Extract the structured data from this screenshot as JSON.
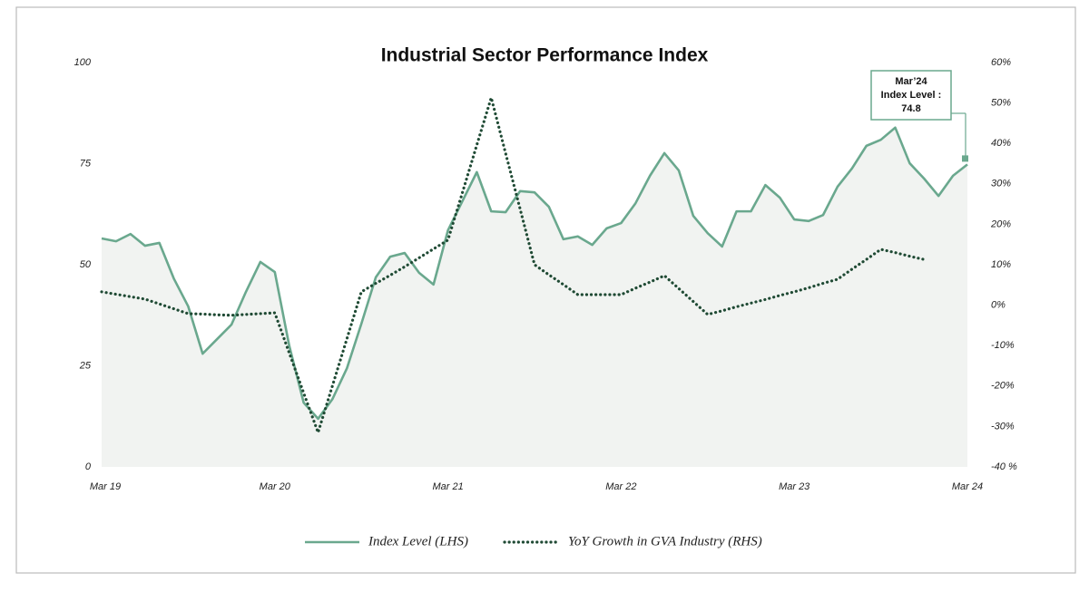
{
  "chart_data": {
    "type": "line",
    "title": "Industrial Sector Performance Index",
    "categories": [
      "Mar 19",
      null,
      null,
      null,
      null,
      null,
      null,
      null,
      null,
      null,
      null,
      null,
      "Mar 20",
      null,
      null,
      null,
      null,
      null,
      null,
      null,
      null,
      null,
      null,
      null,
      "Mar 21",
      null,
      null,
      null,
      null,
      null,
      null,
      null,
      null,
      null,
      null,
      null,
      "Mar 22",
      null,
      null,
      null,
      null,
      null,
      null,
      null,
      null,
      null,
      null,
      null,
      "Mar 23",
      null,
      null,
      null,
      null,
      null,
      null,
      null,
      null,
      null,
      null,
      null,
      "Mar 24"
    ],
    "series": [
      {
        "name": "Index Level (LHS)",
        "color": "#6aa88e",
        "area": true,
        "axis": "y",
        "values": [
          56.5,
          55.8,
          57.6,
          54.7,
          55.4,
          46.6,
          39.7,
          28.0,
          31.6,
          35.2,
          43.3,
          50.7,
          48.2,
          30.0,
          15.9,
          11.9,
          16.8,
          24.4,
          35.4,
          46.9,
          52.0,
          52.9,
          48.0,
          45.1,
          58.5,
          65.7,
          72.9,
          63.2,
          63.0,
          68.2,
          67.9,
          64.3,
          56.3,
          57.0,
          54.9,
          59.0,
          60.3,
          65.2,
          72.0,
          77.6,
          73.3,
          62.1,
          57.8,
          54.5,
          63.2,
          63.2,
          69.7,
          66.6,
          61.2,
          60.8,
          62.3,
          69.3,
          73.8,
          79.4,
          80.9,
          83.9,
          75.1,
          71.3,
          67.0,
          72.0,
          74.8
        ]
      },
      {
        "name": "YoY Growth in GVA Industry (RHS)",
        "color": "#1f4a34",
        "dotted": true,
        "axis": "y2",
        "values": [
          3.3,
          2.7,
          2.1,
          1.5,
          0.3,
          -0.9,
          -2.1,
          -2.2,
          -2.4,
          -2.5,
          -2.3,
          -2.1,
          -1.9,
          -11.8,
          -21.7,
          -31.5,
          -19.9,
          -8.3,
          3.3,
          5.4,
          7.4,
          9.5,
          11.7,
          13.9,
          16.1,
          27.8,
          39.6,
          51.3,
          37.5,
          23.8,
          10.0,
          7.5,
          5.1,
          2.6,
          2.6,
          2.6,
          2.6,
          4.2,
          5.7,
          7.3,
          4.1,
          0.9,
          -2.3,
          -1.4,
          -0.4,
          0.5,
          1.4,
          2.4,
          3.3,
          4.3,
          5.4,
          6.4,
          8.9,
          11.3,
          13.8,
          13.0,
          12.1,
          11.3,
          null,
          null,
          null
        ]
      }
    ],
    "ylim": [
      0,
      100
    ],
    "yticks": [
      0,
      25,
      50,
      75,
      100
    ],
    "y2lim": [
      -40,
      60
    ],
    "y2ticks": [
      {
        "value": 60,
        "label": "60%"
      },
      {
        "value": 50,
        "label": "50%"
      },
      {
        "value": 40,
        "label": "40%"
      },
      {
        "value": 30,
        "label": "30%"
      },
      {
        "value": 20,
        "label": "20%"
      },
      {
        "value": 10,
        "label": "10%"
      },
      {
        "value": 0,
        "label": "0%"
      },
      {
        "value": -10,
        "label": "-10%"
      },
      {
        "value": -20,
        "label": "-20%"
      },
      {
        "value": -30,
        "label": "-30%"
      },
      {
        "value": -40,
        "label": "-40 %"
      }
    ],
    "annotation": {
      "lines": [
        "Mar’24",
        "Index Level :",
        "74.8"
      ]
    },
    "legend": "bottom",
    "grid": false
  }
}
